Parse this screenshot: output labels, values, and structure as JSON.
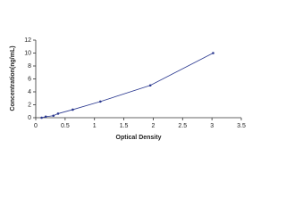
{
  "chart_data": {
    "type": "line",
    "xlabel": "Optical Density",
    "ylabel": "Concentration(ng/mL)",
    "x": [
      0.1,
      0.17,
      0.3,
      0.38,
      0.63,
      1.1,
      1.95,
      3.02
    ],
    "values": [
      0,
      0.16,
      0.31,
      0.63,
      1.25,
      2.5,
      5,
      10
    ],
    "color": "#2b3990",
    "xlim": [
      0,
      3.5
    ],
    "xticks": [
      0,
      0.5,
      1,
      1.5,
      2,
      2.5,
      3,
      3.5
    ],
    "ylim": [
      0,
      12
    ],
    "yticks": [
      0,
      2,
      4,
      6,
      8,
      10,
      12
    ],
    "grid": false
  }
}
